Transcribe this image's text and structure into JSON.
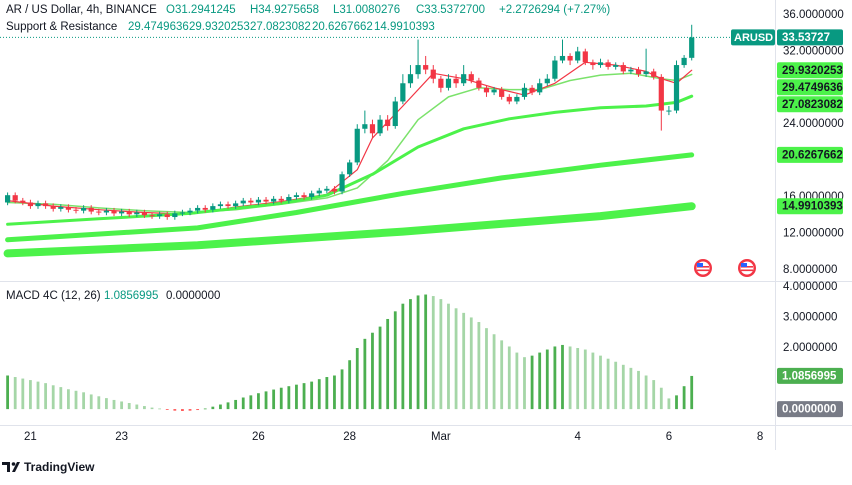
{
  "header": {
    "symbol": "AR / US Dollar, 4h, BINANCE",
    "ohlc": [
      "O31.2941245",
      "H34.9275658",
      "L31.0080276",
      "C33.5372700"
    ],
    "change": "+2.2726294 (+7.27%)",
    "indicator": "Support & Resistance"
  },
  "chart_data": [
    {
      "type": "candlestick",
      "ticker": "ARUSD",
      "up_color": "#089981",
      "down_color": "#f23645",
      "tag_color": "#4cf24a",
      "xlim": [
        -1,
        100.3
      ],
      "ylim": [
        6.77,
        37.65
      ],
      "xticks": [
        {
          "value": 3,
          "label": "21"
        },
        {
          "value": 15,
          "label": "23"
        },
        {
          "value": 33,
          "label": "26"
        },
        {
          "value": 45,
          "label": "28"
        },
        {
          "value": 57,
          "label": "Mar"
        },
        {
          "value": 75,
          "label": "4"
        },
        {
          "value": 87,
          "label": "6"
        },
        {
          "value": 99,
          "label": "8"
        }
      ],
      "yticks": [
        {
          "value": 36,
          "label": "36.0000000"
        },
        {
          "value": 32,
          "label": "32.0000000"
        },
        {
          "value": 24,
          "label": "24.0000000"
        },
        {
          "value": 16,
          "label": "16.0000000"
        },
        {
          "value": 12,
          "label": "12.0000000"
        },
        {
          "value": 8,
          "label": "8.0000000"
        }
      ],
      "open": [
        15.4,
        16.2,
        15.6,
        15.4,
        15.0,
        15.3,
        15.0,
        14.7,
        14.9,
        14.6,
        14.5,
        14.8,
        14.4,
        14.3,
        14.5,
        14.2,
        14.4,
        14.1,
        14.3,
        14.0,
        13.9,
        14.1,
        13.8,
        14.2,
        14.3,
        14.5,
        14.8,
        14.6,
        15.0,
        15.2,
        15.0,
        15.3,
        15.6,
        15.4,
        15.7,
        15.5,
        15.8,
        15.6,
        16.0,
        16.2,
        16.0,
        16.4,
        16.7,
        16.9,
        16.6,
        18.5,
        19.8,
        23.5,
        24.0,
        23.0,
        24.5,
        23.8,
        26.5,
        28.5,
        29.5,
        30.5,
        30.0,
        29.0,
        28.0,
        29.0,
        28.5,
        29.5,
        28.8,
        28.0,
        27.5,
        27.8,
        27.0,
        26.5,
        27.0,
        28.0,
        27.5,
        28.5,
        29.0,
        31.0,
        31.5,
        31.0,
        32.0,
        30.8,
        30.5,
        30.8,
        30.3,
        30.5,
        29.8,
        30.0,
        29.5,
        29.8,
        29.2,
        25.5,
        25.5,
        30.5,
        31.2941245
      ],
      "high": [
        16.5,
        16.5,
        15.9,
        15.7,
        15.6,
        15.6,
        15.3,
        15.2,
        15.2,
        14.9,
        15.1,
        15.1,
        14.7,
        14.8,
        14.8,
        14.7,
        14.7,
        14.6,
        14.6,
        14.3,
        14.4,
        14.4,
        14.5,
        14.6,
        14.8,
        15.1,
        15.1,
        15.3,
        15.5,
        15.5,
        15.6,
        15.9,
        15.9,
        16.0,
        16.0,
        16.1,
        16.1,
        16.3,
        16.5,
        16.5,
        16.7,
        17.0,
        17.2,
        17.2,
        18.8,
        20.1,
        24.0,
        25.5,
        24.5,
        25.0,
        25.0,
        27.0,
        29.5,
        30.5,
        33.3,
        31.5,
        30.5,
        29.3,
        29.5,
        29.5,
        30.5,
        29.8,
        29.1,
        28.3,
        28.1,
        28.1,
        27.3,
        27.3,
        28.5,
        28.3,
        29.0,
        29.5,
        31.5,
        33.3,
        31.8,
        32.5,
        32.3,
        31.1,
        31.2,
        31.1,
        30.8,
        30.8,
        30.3,
        30.3,
        32.3,
        30.1,
        29.5,
        26.0,
        31.0,
        31.6,
        34.9275658
      ],
      "low": [
        15.1,
        15.3,
        15.1,
        14.7,
        14.7,
        14.7,
        14.4,
        14.4,
        14.3,
        14.2,
        14.2,
        14.1,
        14.0,
        14.0,
        13.9,
        13.9,
        13.8,
        13.8,
        13.7,
        13.6,
        13.6,
        13.5,
        13.5,
        13.9,
        14.0,
        14.2,
        14.3,
        14.3,
        14.7,
        14.7,
        14.7,
        15.0,
        15.1,
        15.1,
        15.2,
        15.2,
        15.3,
        15.3,
        15.7,
        15.7,
        15.7,
        16.1,
        16.4,
        16.3,
        16.3,
        18.2,
        19.5,
        23.0,
        22.5,
        22.7,
        23.3,
        23.5,
        26.2,
        28.0,
        29.0,
        29.5,
        28.5,
        27.5,
        27.7,
        28.0,
        28.2,
        28.5,
        27.7,
        27.0,
        27.2,
        26.7,
        26.2,
        26.2,
        26.7,
        27.2,
        27.2,
        28.2,
        28.7,
        30.7,
        30.5,
        30.7,
        30.5,
        30.0,
        30.2,
        30.0,
        30.0,
        29.5,
        29.5,
        29.2,
        29.2,
        28.9,
        23.3,
        25.0,
        25.2,
        30.2,
        31.0080276
      ],
      "close": [
        16.2,
        15.6,
        15.4,
        15.0,
        15.3,
        15.0,
        14.7,
        14.9,
        14.6,
        14.5,
        14.8,
        14.4,
        14.3,
        14.5,
        14.2,
        14.4,
        14.1,
        14.3,
        14.0,
        13.9,
        14.1,
        13.8,
        14.2,
        14.3,
        14.5,
        14.8,
        14.6,
        15.0,
        15.2,
        15.0,
        15.3,
        15.6,
        15.4,
        15.7,
        15.5,
        15.8,
        15.6,
        16.0,
        16.2,
        16.0,
        16.4,
        16.7,
        16.9,
        16.6,
        18.5,
        19.8,
        23.5,
        24.0,
        23.0,
        24.5,
        23.8,
        26.5,
        28.5,
        29.5,
        30.5,
        30.0,
        29.0,
        28.0,
        29.0,
        28.5,
        29.5,
        28.8,
        28.0,
        27.5,
        27.8,
        27.0,
        26.5,
        27.0,
        28.0,
        27.5,
        28.5,
        29.0,
        31.0,
        31.5,
        31.0,
        32.0,
        30.8,
        30.5,
        30.8,
        30.3,
        30.5,
        29.8,
        30.0,
        29.5,
        29.8,
        29.2,
        25.5,
        25.5,
        30.5,
        31.29,
        33.53727
      ],
      "series": [
        {
          "color": "#7be26b",
          "width": 1.5,
          "x": [
            0,
            6,
            12,
            18,
            24,
            30,
            36,
            42,
            46,
            50,
            54,
            58,
            62,
            66,
            70,
            74,
            78,
            82,
            86,
            88,
            90
          ],
          "values": [
            15.4,
            15.2,
            14.8,
            14.5,
            14.3,
            14.6,
            15.2,
            15.9,
            17.0,
            20.0,
            24.5,
            27.0,
            28.0,
            27.8,
            27.8,
            28.8,
            29.4,
            29.6,
            29.0,
            28.8,
            29.4749636
          ]
        },
        {
          "color": "#f23645",
          "width": 1.2,
          "x": [
            0,
            6,
            12,
            18,
            24,
            30,
            36,
            42,
            46,
            48,
            52,
            56,
            60,
            64,
            68,
            72,
            76,
            80,
            84,
            86,
            88,
            90
          ],
          "values": [
            15.6,
            15.0,
            14.6,
            14.3,
            14.1,
            14.9,
            15.5,
            16.3,
            19.0,
            22.5,
            26.0,
            29.6,
            29.0,
            28.0,
            27.2,
            28.5,
            30.8,
            30.5,
            29.8,
            29.0,
            28.5,
            29.9320253
          ]
        },
        {
          "color": "#4cf24a",
          "width": 3,
          "x": [
            0,
            12,
            24,
            36,
            42,
            48,
            54,
            60,
            66,
            72,
            78,
            84,
            88,
            90
          ],
          "values": [
            13.0,
            13.6,
            14.2,
            15.3,
            16.2,
            18.5,
            21.5,
            23.5,
            24.6,
            25.3,
            25.8,
            26.0,
            26.4,
            27.0823082
          ]
        },
        {
          "color": "#4cf24a",
          "width": 5,
          "x": [
            0,
            25,
            38,
            52,
            65,
            78,
            90
          ],
          "values": [
            11.3,
            12.6,
            14.3,
            16.4,
            18.1,
            19.5,
            20.6267662
          ]
        },
        {
          "color": "#4cf24a",
          "width": 8,
          "x": [
            0,
            25,
            52,
            78,
            90
          ],
          "values": [
            9.8,
            10.7,
            12.2,
            13.9,
            14.9910393
          ]
        }
      ]
    },
    {
      "type": "bar",
      "title": "MACD 4C (12, 26)",
      "xlim": [
        -1,
        100.3
      ],
      "ylim": [
        -0.52,
        4.16
      ],
      "rise_color": "#4caf50",
      "fall_color": "#a5d6a7",
      "neg_color": "#ff5252",
      "zero_color": "#787b86",
      "yticks": [
        {
          "value": 4,
          "label": "4.0000000"
        },
        {
          "value": 3,
          "label": "3.0000000"
        },
        {
          "value": 2,
          "label": "2.0000000"
        },
        {
          "value": 0,
          "label": "0.0000000"
        }
      ],
      "values": [
        1.1,
        1.05,
        1.0,
        0.95,
        0.9,
        0.85,
        0.78,
        0.72,
        0.65,
        0.6,
        0.55,
        0.48,
        0.42,
        0.36,
        0.3,
        0.25,
        0.2,
        0.15,
        0.1,
        0.05,
        0.02,
        -0.02,
        -0.05,
        -0.06,
        -0.05,
        -0.03,
        0.02,
        0.08,
        0.15,
        0.22,
        0.3,
        0.38,
        0.45,
        0.52,
        0.58,
        0.64,
        0.7,
        0.75,
        0.8,
        0.85,
        0.9,
        0.98,
        1.05,
        1.1,
        1.3,
        1.6,
        2.0,
        2.3,
        2.5,
        2.7,
        2.95,
        3.2,
        3.45,
        3.6,
        3.72,
        3.75,
        3.7,
        3.6,
        3.45,
        3.3,
        3.15,
        3.0,
        2.85,
        2.65,
        2.45,
        2.25,
        2.05,
        1.85,
        1.7,
        1.75,
        1.85,
        1.95,
        2.05,
        2.1,
        2.05,
        2.0,
        1.95,
        1.85,
        1.75,
        1.65,
        1.55,
        1.45,
        1.35,
        1.25,
        1.1,
        0.95,
        0.7,
        0.35,
        0.45,
        0.75,
        1.0856995
      ]
    }
  ],
  "branding": "TradingView"
}
